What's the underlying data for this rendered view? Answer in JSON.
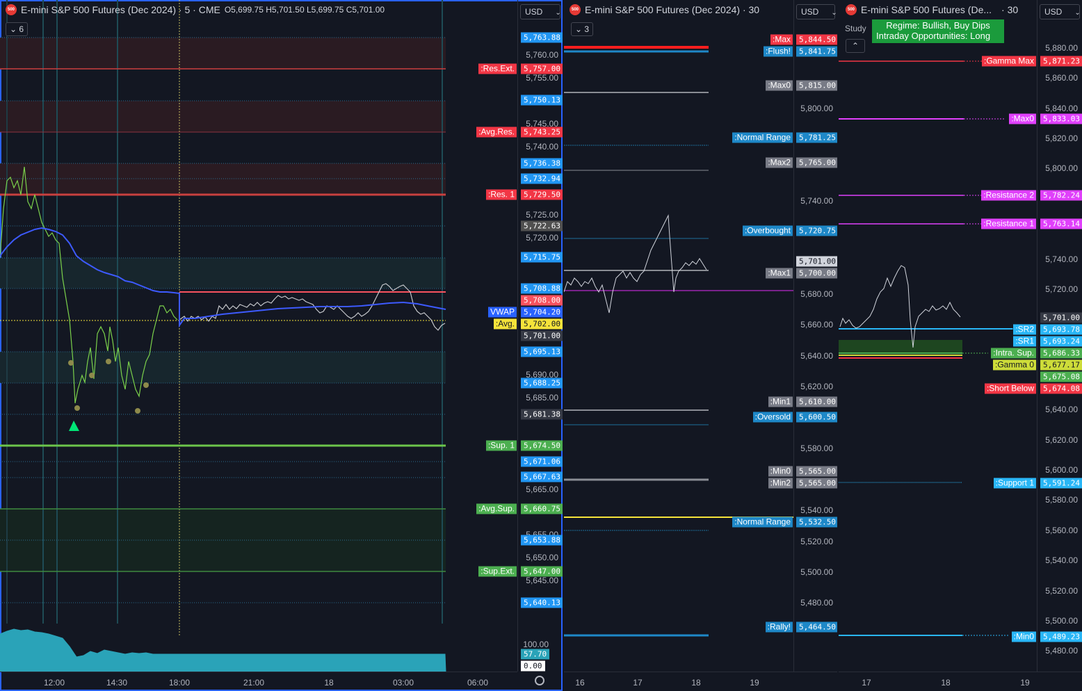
{
  "pane1": {
    "title": "E-mini S&P 500 Futures (Dec 2024) · 5 · CME",
    "ohlc": {
      "o": "O5,699.75",
      "h": "H5,701.50",
      "l": "L5,699.75",
      "c": "C5,701.00"
    },
    "currency": "USD",
    "indicator_count": "6",
    "price_ticks": [
      "5,760.00",
      "5,755.00",
      "5,745.00",
      "5,740.00",
      "5,725.00",
      "5,720.00",
      "5,690.00",
      "5,685.00",
      "5,665.00",
      "5,655.00",
      "5,650.00",
      "5,645.00"
    ],
    "levels": [
      {
        "label": "",
        "value": "5,763.88",
        "color": "#2196f3"
      },
      {
        "label": ":Res.Ext.",
        "value": "5,757.00",
        "color": "#f23645"
      },
      {
        "label": "",
        "value": "5,750.13",
        "color": "#2196f3"
      },
      {
        "label": ":Avg.Res.",
        "value": "5,743.25",
        "color": "#f23645"
      },
      {
        "label": "",
        "value": "5,736.38",
        "color": "#2196f3"
      },
      {
        "label": "",
        "value": "5,732.94",
        "color": "#2196f3"
      },
      {
        "label": ":Res. 1",
        "value": "5,729.50",
        "color": "#f23645"
      },
      {
        "label": "",
        "value": "5,722.63",
        "color": "#505050"
      },
      {
        "label": "",
        "value": "5,715.75",
        "color": "#2196f3"
      },
      {
        "label": "",
        "value": "5,708.88",
        "color": "#2196f3"
      },
      {
        "label": "",
        "value": "5,708.00",
        "color": "#f7525f"
      },
      {
        "label": "VWAP",
        "value": "5,704.20",
        "color": "#2962ff"
      },
      {
        "label": ":Avg.",
        "value": "5,702.00",
        "color": "#f5e33a"
      },
      {
        "label": "",
        "value": "5,701.00",
        "color": "#363a45"
      },
      {
        "label": "",
        "value": "5,695.13",
        "color": "#2196f3"
      },
      {
        "label": "",
        "value": "5,688.25",
        "color": "#2196f3"
      },
      {
        "label": "",
        "value": "5,681.38",
        "color": "#363a45"
      },
      {
        "label": ":Sup. 1",
        "value": "5,674.50",
        "color": "#4caf50"
      },
      {
        "label": "",
        "value": "5,671.06",
        "color": "#2196f3"
      },
      {
        "label": "",
        "value": "5,667.63",
        "color": "#2196f3"
      },
      {
        "label": ":Avg.Sup.",
        "value": "5,660.75",
        "color": "#4caf50"
      },
      {
        "label": "",
        "value": "5,653.88",
        "color": "#2196f3"
      },
      {
        "label": ":Sup.Ext.",
        "value": "5,647.00",
        "color": "#4caf50"
      },
      {
        "label": "",
        "value": "5,640.13",
        "color": "#2196f3"
      }
    ],
    "volume_ticks": {
      "top": "100.00",
      "current": "57.70",
      "zero": "0.00"
    },
    "time_ticks": [
      "12:00",
      "14:30",
      "18:00",
      "21:00",
      "18",
      "03:00",
      "06:00"
    ]
  },
  "pane2": {
    "title": "E-mini S&P 500 Futures (Dec 2024) · 30",
    "currency": "USD",
    "indicator_count": "3",
    "price_ticks": [
      "5,800.00",
      "5,740.00",
      "5,680.00",
      "5,660.00",
      "5,640.00",
      "5,620.00",
      "5,580.00",
      "5,540.00",
      "5,520.00",
      "5,500.00",
      "5,480.00"
    ],
    "levels": [
      {
        "label": ":Max",
        "value": "5,844.50",
        "color": "#f23645"
      },
      {
        "label": ":Flush!",
        "value": "5,841.75",
        "color": "#1e88c8"
      },
      {
        "label": ":Max0",
        "value": "5,815.00",
        "color": "#787b86"
      },
      {
        "label": ":Normal Range",
        "value": "5,781.25",
        "color": "#1e88c8"
      },
      {
        "label": ":Max2",
        "value": "5,765.00",
        "color": "#787b86"
      },
      {
        "label": ":Overbought",
        "value": "5,720.75",
        "color": "#1e88c8"
      },
      {
        "label": "",
        "value": "5,701.00",
        "color": "#d1d4dc"
      },
      {
        "label": ":Max1",
        "value": "5,700.00",
        "color": "#787b86"
      },
      {
        "label": ":Min1",
        "value": "5,610.00",
        "color": "#787b86"
      },
      {
        "label": ":Oversold",
        "value": "5,600.50",
        "color": "#1e88c8"
      },
      {
        "label": ":Min0",
        "value": "5,565.00",
        "color": "#787b86"
      },
      {
        "label": ":Min2",
        "value": "5,565.00",
        "color": "#787b86"
      },
      {
        "label": ":Normal Range",
        "value": "5,532.50",
        "color": "#1e88c8"
      },
      {
        "label": ":Rally!",
        "value": "5,464.50",
        "color": "#1e88c8"
      }
    ],
    "time_ticks": [
      "16",
      "17",
      "18",
      "19"
    ]
  },
  "pane3": {
    "title": "E-mini S&P 500 Futures (De...",
    "interval": "· 30",
    "currency": "USD",
    "study_label": "Study",
    "regime": "Regime: Bullish, Buy Dips",
    "intraday": "Intraday Opportunities: Long",
    "price_ticks": [
      "5,880.00",
      "5,860.00",
      "5,840.00",
      "5,820.00",
      "5,800.00",
      "5,740.00",
      "5,720.00",
      "5,640.00",
      "5,620.00",
      "5,600.00",
      "5,580.00",
      "5,560.00",
      "5,540.00",
      "5,520.00",
      "5,500.00",
      "5,480.00"
    ],
    "levels": [
      {
        "label": ":Gamma Max",
        "value": "5,871.23",
        "color": "#f23645"
      },
      {
        "label": ":Max0",
        "value": "5,833.03",
        "color": "#e040fb"
      },
      {
        "label": ":Resistance 2",
        "value": "5,782.24",
        "color": "#e040fb"
      },
      {
        "label": ":Resistance 1",
        "value": "5,763.14",
        "color": "#e040fb"
      },
      {
        "label": "",
        "value": "5,701.00",
        "color": "#363a45"
      },
      {
        "label": ":SR2",
        "value": "5,693.78",
        "color": "#29b6f6"
      },
      {
        "label": ":SR1",
        "value": "5,693.24",
        "color": "#29b6f6"
      },
      {
        "label": ":Intra. Sup.",
        "value": "5,686.33",
        "color": "#4caf50"
      },
      {
        "label": ":Gamma 0",
        "value": "5,677.17",
        "color": "#cddc39"
      },
      {
        "label": "",
        "value": "5,675.08",
        "color": "#4caf50"
      },
      {
        "label": ":Short Below",
        "value": "5,674.08",
        "color": "#f23645"
      },
      {
        "label": ":Support 1",
        "value": "5,591.24",
        "color": "#29b6f6"
      },
      {
        "label": ":Min0",
        "value": "5,489.23",
        "color": "#29b6f6"
      }
    ],
    "time_ticks": [
      "17",
      "18",
      "19"
    ]
  }
}
